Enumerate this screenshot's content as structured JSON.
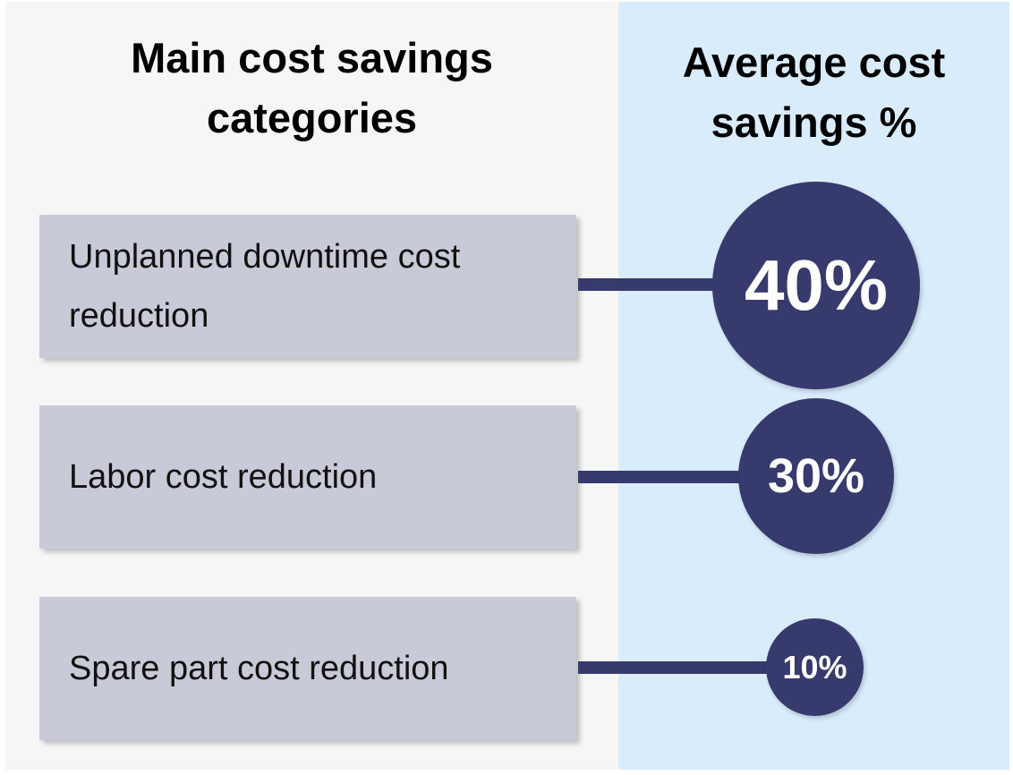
{
  "headers": {
    "categories_line1": "Main cost savings",
    "categories_line2": "categories",
    "savings_line1": "Average cost",
    "savings_line2": "savings %"
  },
  "colors": {
    "left_panel": "#f6f6f6",
    "right_panel": "#d8ecfc",
    "box": "#c9cad8",
    "bubble": "#363a6c",
    "bubble_text": "#ffffff"
  },
  "chart_data": {
    "type": "bar",
    "categories": [
      "Unplanned downtime cost reduction",
      "Labor cost reduction",
      "Spare part cost reduction"
    ],
    "values": [
      40,
      30,
      10
    ],
    "value_labels": [
      "40%",
      "30%",
      "10%"
    ],
    "title": "",
    "xlabel": "Main cost savings categories",
    "ylabel": "Average cost savings %"
  }
}
